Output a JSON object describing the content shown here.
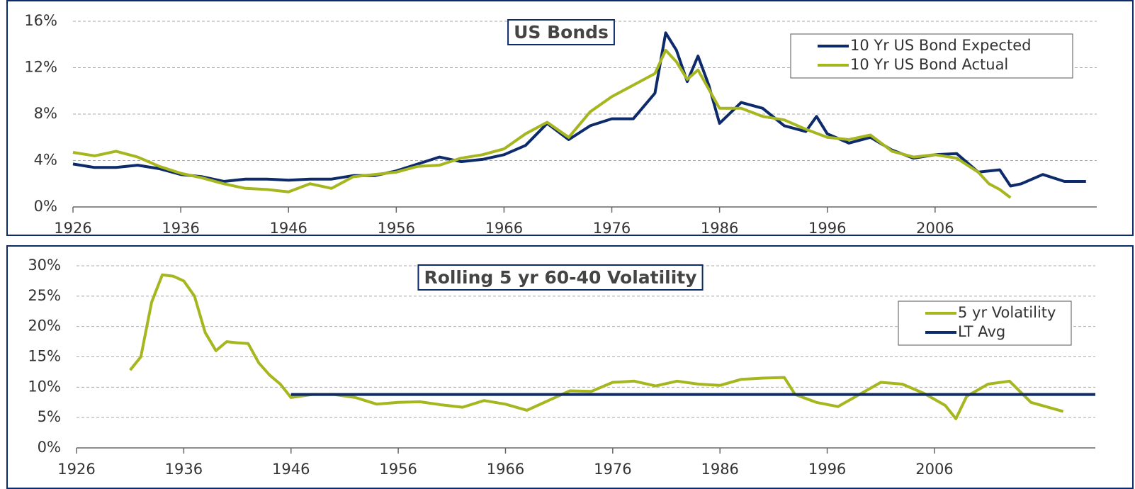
{
  "chart_data": [
    {
      "type": "line",
      "title": "US Bonds",
      "legend": "upper right",
      "grid": true,
      "xlim": [
        1926,
        2021
      ],
      "xticks": [
        1926,
        1936,
        1946,
        1956,
        1966,
        1976,
        1986,
        1996,
        2006
      ],
      "ylim": [
        0,
        16
      ],
      "yticks": [
        {
          "value": 0,
          "label": "0%"
        },
        {
          "value": 4,
          "label": "4%"
        },
        {
          "value": 8,
          "label": "8%"
        },
        {
          "value": 12,
          "label": "12%"
        },
        {
          "value": 16,
          "label": "16%"
        }
      ],
      "series": [
        {
          "name": "10 Yr US Bond Expected",
          "color": "#0d2a6b",
          "x": [
            1926,
            1928,
            1930,
            1932,
            1934,
            1936,
            1938,
            1940,
            1942,
            1944,
            1946,
            1948,
            1950,
            1952,
            1954,
            1956,
            1958,
            1960,
            1962,
            1964,
            1966,
            1968,
            1970,
            1972,
            1974,
            1976,
            1978,
            1980,
            1981,
            1982,
            1983,
            1984,
            1985,
            1986,
            1988,
            1990,
            1992,
            1994,
            1995,
            1996,
            1998,
            2000,
            2002,
            2004,
            2006,
            2008,
            2010,
            2012,
            2013,
            2014,
            2016,
            2018,
            2020
          ],
          "values": [
            3.7,
            3.4,
            3.4,
            3.6,
            3.3,
            2.8,
            2.6,
            2.2,
            2.4,
            2.4,
            2.3,
            2.4,
            2.4,
            2.7,
            2.7,
            3.1,
            3.7,
            4.3,
            3.9,
            4.1,
            4.5,
            5.3,
            7.2,
            5.8,
            7.0,
            7.6,
            7.6,
            9.8,
            15.0,
            13.5,
            10.8,
            13.0,
            10.5,
            7.2,
            9.0,
            8.5,
            7.0,
            6.5,
            7.8,
            6.3,
            5.5,
            6.0,
            4.9,
            4.2,
            4.5,
            4.6,
            3.0,
            3.2,
            1.8,
            2.0,
            2.8,
            2.2,
            2.2
          ]
        },
        {
          "name": "10 Yr US Bond Actual",
          "color": "#a6b61e",
          "x": [
            1926,
            1928,
            1930,
            1932,
            1934,
            1936,
            1938,
            1940,
            1942,
            1944,
            1946,
            1948,
            1950,
            1952,
            1954,
            1956,
            1958,
            1960,
            1962,
            1964,
            1966,
            1968,
            1970,
            1972,
            1974,
            1976,
            1978,
            1980,
            1981,
            1982,
            1983,
            1984,
            1986,
            1988,
            1990,
            1992,
            1994,
            1996,
            1998,
            2000,
            2002,
            2004,
            2006,
            2008,
            2010,
            2011,
            2012,
            2013
          ],
          "values": [
            4.7,
            4.4,
            4.8,
            4.3,
            3.5,
            2.9,
            2.5,
            2.0,
            1.6,
            1.5,
            1.3,
            2.0,
            1.6,
            2.6,
            2.8,
            3.0,
            3.5,
            3.6,
            4.2,
            4.5,
            5.0,
            6.3,
            7.3,
            6.0,
            8.2,
            9.5,
            10.5,
            11.5,
            13.5,
            12.5,
            11.0,
            11.8,
            8.5,
            8.5,
            7.8,
            7.5,
            6.7,
            6.0,
            5.8,
            6.2,
            4.8,
            4.3,
            4.5,
            4.2,
            3.0,
            2.0,
            1.5,
            0.8
          ]
        }
      ]
    },
    {
      "type": "line",
      "title": "Rolling 5 yr 60-40 Volatility",
      "legend": "upper right",
      "grid": true,
      "xlim": [
        1926,
        2021
      ],
      "xticks": [
        1926,
        1936,
        1946,
        1956,
        1966,
        1976,
        1986,
        1996,
        2006
      ],
      "ylim": [
        0,
        30
      ],
      "yticks": [
        {
          "value": 0,
          "label": "0%"
        },
        {
          "value": 5,
          "label": "5%"
        },
        {
          "value": 10,
          "label": "10%"
        },
        {
          "value": 15,
          "label": "15%"
        },
        {
          "value": 20,
          "label": "20%"
        },
        {
          "value": 25,
          "label": "25%"
        },
        {
          "value": 30,
          "label": "30%"
        }
      ],
      "series": [
        {
          "name": "5 yr Volatility",
          "color": "#a6b61e",
          "x": [
            1931,
            1932,
            1933,
            1934,
            1935,
            1936,
            1937,
            1938,
            1939,
            1940,
            1941,
            1942,
            1943,
            1944,
            1945,
            1946,
            1948,
            1950,
            1952,
            1954,
            1956,
            1958,
            1960,
            1962,
            1964,
            1966,
            1968,
            1970,
            1972,
            1974,
            1976,
            1978,
            1980,
            1982,
            1984,
            1986,
            1988,
            1990,
            1992,
            1993,
            1995,
            1997,
            1999,
            2001,
            2003,
            2005,
            2007,
            2008,
            2009,
            2011,
            2013,
            2015,
            2017,
            2018
          ],
          "values": [
            12.8,
            15,
            24,
            28.5,
            28.3,
            27.5,
            25,
            19,
            16,
            17.5,
            17.3,
            17.2,
            14,
            12,
            10.5,
            8.3,
            8.8,
            8.8,
            8.3,
            7.2,
            7.5,
            7.6,
            7.1,
            6.7,
            7.8,
            7.2,
            6.2,
            7.8,
            9.4,
            9.3,
            10.8,
            11.0,
            10.2,
            11.0,
            10.5,
            10.3,
            11.3,
            11.5,
            11.6,
            8.8,
            7.5,
            6.8,
            8.8,
            10.8,
            10.5,
            9.0,
            7.0,
            4.8,
            8.5,
            10.5,
            11.0,
            7.5,
            6.5,
            6.0
          ]
        },
        {
          "name": "LT Avg",
          "color": "#0d2a6b",
          "x": [
            1946,
            2021
          ],
          "values": [
            8.8,
            8.8
          ]
        }
      ]
    }
  ]
}
